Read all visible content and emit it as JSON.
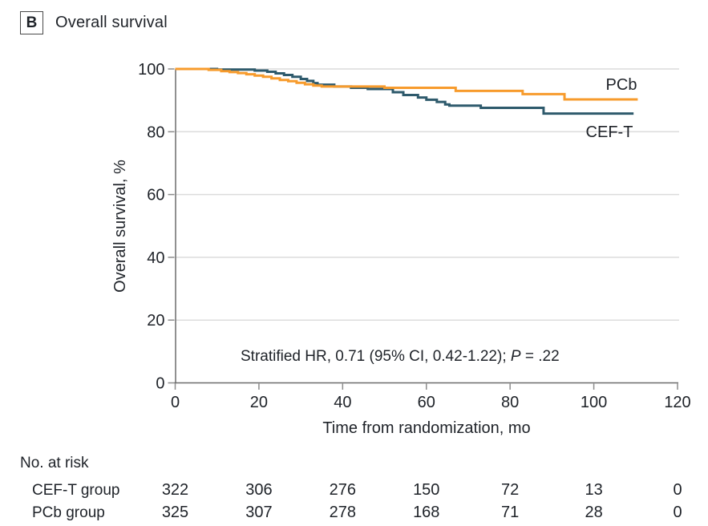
{
  "panel": {
    "letter": "B",
    "title": "Overall survival"
  },
  "colors": {
    "pcb_orange": "#F79B2C",
    "ceft_teal": "#2E5A6C",
    "text": "#1E2228",
    "axis": "#6B6B6B",
    "tick": "#8C8C8C",
    "grid": "#DCDCDC"
  },
  "chart_data": {
    "type": "line",
    "subtype": "kaplan-meier-step",
    "title": "Overall survival",
    "xlabel": "Time from randomization, mo",
    "ylabel": "Overall survival, %",
    "xlim": [
      0,
      120
    ],
    "ylim": [
      0,
      100
    ],
    "xticks": [
      0,
      20,
      40,
      60,
      80,
      100,
      120
    ],
    "yticks": [
      0,
      20,
      40,
      60,
      80,
      100
    ],
    "grid": "horizontal",
    "legend_position": "curve-end-labels",
    "annotation": {
      "prefix": "Stratified HR, 0.71 (95% CI, 0.42-1.22); ",
      "p_symbol": "P",
      "p_value": " = .22"
    },
    "series": [
      {
        "name": "CEF-T",
        "color": "#2E5A6C",
        "points": [
          [
            0,
            100
          ],
          [
            10,
            99.8
          ],
          [
            19,
            99.5
          ],
          [
            22,
            99.1
          ],
          [
            24,
            98.6
          ],
          [
            26,
            98.1
          ],
          [
            28,
            97.5
          ],
          [
            30,
            96.8
          ],
          [
            31.5,
            96.2
          ],
          [
            33,
            95.5
          ],
          [
            34,
            95.0
          ],
          [
            38,
            94.4
          ],
          [
            42,
            94.0
          ],
          [
            46,
            93.6
          ],
          [
            52,
            92.6
          ],
          [
            54.5,
            91.7
          ],
          [
            58,
            90.9
          ],
          [
            60,
            90.2
          ],
          [
            62.5,
            89.5
          ],
          [
            64.5,
            88.7
          ],
          [
            65.5,
            88.3
          ],
          [
            73,
            87.6
          ],
          [
            88,
            85.8
          ],
          [
            109.5,
            85.8
          ]
        ]
      },
      {
        "name": "PCb",
        "color": "#F79B2C",
        "points": [
          [
            0,
            100
          ],
          [
            8,
            99.7
          ],
          [
            11,
            99.3
          ],
          [
            13,
            99.0
          ],
          [
            15,
            98.7
          ],
          [
            17,
            98.3
          ],
          [
            19,
            97.9
          ],
          [
            21,
            97.5
          ],
          [
            23,
            97.0
          ],
          [
            25,
            96.5
          ],
          [
            27,
            96.1
          ],
          [
            29,
            95.6
          ],
          [
            31,
            95.1
          ],
          [
            33,
            94.7
          ],
          [
            35,
            94.4
          ],
          [
            50,
            94.0
          ],
          [
            67,
            93.0
          ],
          [
            83,
            92.0
          ],
          [
            93,
            90.3
          ],
          [
            110.5,
            90.3
          ]
        ]
      }
    ]
  },
  "risk_table": {
    "heading": "No. at risk",
    "times": [
      0,
      20,
      40,
      60,
      80,
      100,
      120
    ],
    "rows": [
      {
        "label": "CEF-T group",
        "values": [
          322,
          306,
          276,
          150,
          72,
          13,
          0
        ]
      },
      {
        "label": "PCb group",
        "values": [
          325,
          307,
          278,
          168,
          71,
          28,
          0
        ]
      }
    ]
  }
}
